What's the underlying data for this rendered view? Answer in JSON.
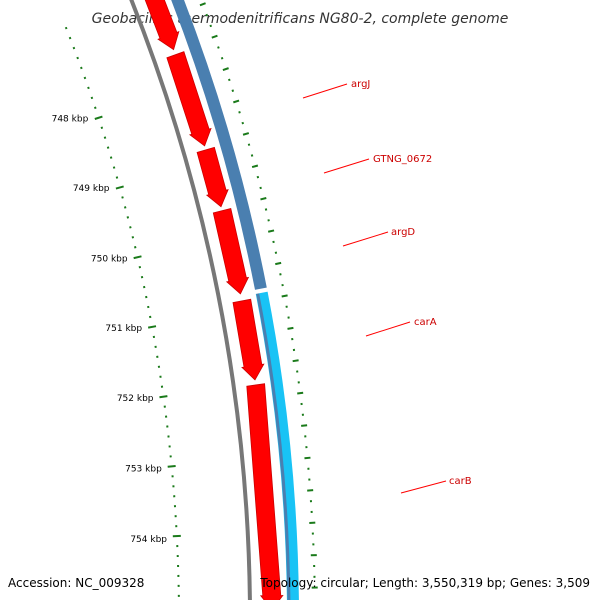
{
  "title": "Geobacillus thermodenitrificans NG80-2, complete genome",
  "accession": "Accession: NC_009328",
  "topology": "Topology: circular; Length: 3,550,319 bp; Genes: 3,509",
  "ticks": [
    {
      "label": "748 kbp"
    },
    {
      "label": "749 kbp"
    },
    {
      "label": "750 kbp"
    },
    {
      "label": "751 kbp"
    },
    {
      "label": "752 kbp"
    },
    {
      "label": "753 kbp"
    },
    {
      "label": "754 kbp"
    }
  ],
  "genes": [
    {
      "name": "argJ"
    },
    {
      "name": "GTNG_0672"
    },
    {
      "name": "argD"
    },
    {
      "name": "carA"
    },
    {
      "name": "carB"
    }
  ],
  "colors": {
    "cds": "#ff0000",
    "cds_dark": "#cc0000",
    "backbone": "#777777",
    "ring_blue": "#4a7fb0",
    "ring_cyan": "#19c3f5",
    "tick": "#1a7a1a",
    "label": "#cc0000",
    "leader": "#ff0000"
  }
}
